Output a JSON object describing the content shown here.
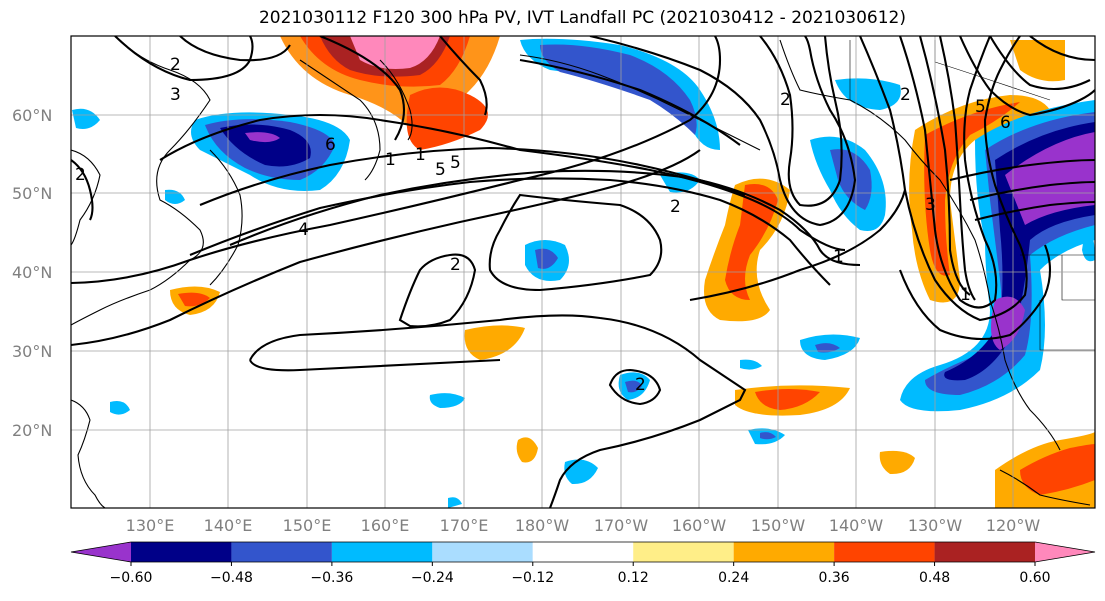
{
  "title": "2021030112 F120 300 hPa PV, IVT Landfall PC (2021030412 - 2021030612)",
  "lat_labels": [
    "60°N",
    "50°N",
    "40°N",
    "30°N",
    "20°N"
  ],
  "lon_labels": [
    "130°E",
    "140°E",
    "150°E",
    "160°E",
    "170°E",
    "180°W",
    "170°W",
    "160°W",
    "150°W",
    "140°W",
    "130°W",
    "120°W"
  ],
  "contour_labels": [
    "2",
    "3",
    "5",
    "6",
    "1",
    "5",
    "2",
    "2",
    "1",
    "2",
    "2",
    "1",
    "5",
    "3",
    "6",
    "4",
    "2",
    "2",
    "1"
  ],
  "colorbar": {
    "colors": [
      "#9933cc",
      "#000088",
      "#3355cc",
      "#00bbff",
      "#aaddff",
      "#ffffff",
      "#ffee88",
      "#ffaa00",
      "#ff4400",
      "#aa2222",
      "#ff88bb"
    ],
    "tick_labels": [
      "−0.60",
      "−0.48",
      "−0.36",
      "−0.24",
      "−0.12",
      "0.12",
      "0.24",
      "0.36",
      "0.48",
      "0.60"
    ]
  }
}
